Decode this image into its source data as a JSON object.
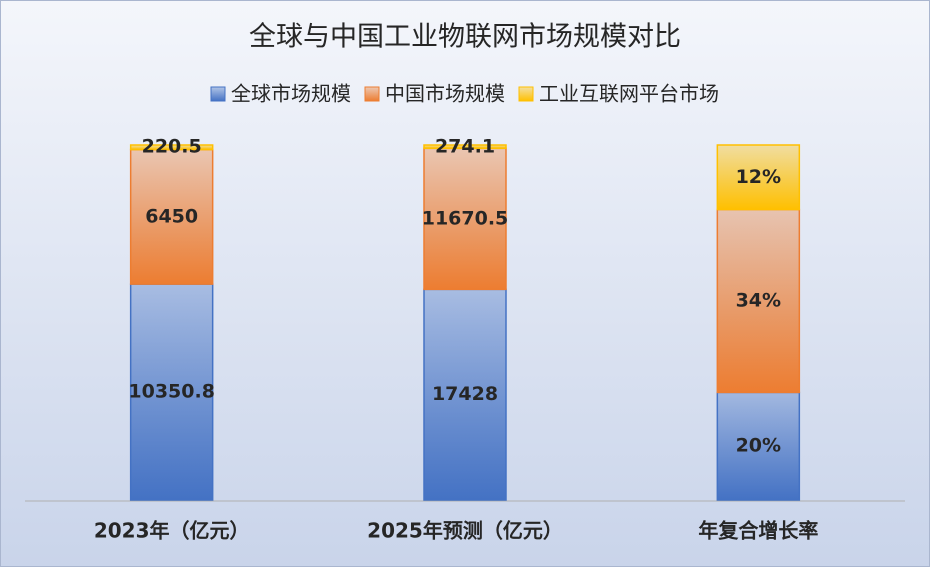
{
  "chart_data": {
    "type": "bar",
    "stacked": "percent",
    "title": "全球与中国工业物联网市场规模对比",
    "categories": [
      "2023年（亿元）",
      "2025年预测（亿元）",
      "年复合增长率"
    ],
    "series": [
      {
        "name": "全球市场规模",
        "color": "#4472c4",
        "values": [
          10350.8,
          17428,
          20
        ],
        "value_labels": [
          "10350.8",
          "17428",
          "20%"
        ]
      },
      {
        "name": "中国市场规模",
        "color": "#ed7d31",
        "values": [
          6450,
          11670.5,
          34
        ],
        "value_labels": [
          "6450",
          "11670.5",
          "34%"
        ]
      },
      {
        "name": "工业互联网平台市场",
        "color": "#ffc000",
        "values": [
          220.5,
          274.1,
          12
        ],
        "value_labels": [
          "220.5",
          "274.1",
          "12%"
        ]
      }
    ],
    "legend": "top"
  }
}
